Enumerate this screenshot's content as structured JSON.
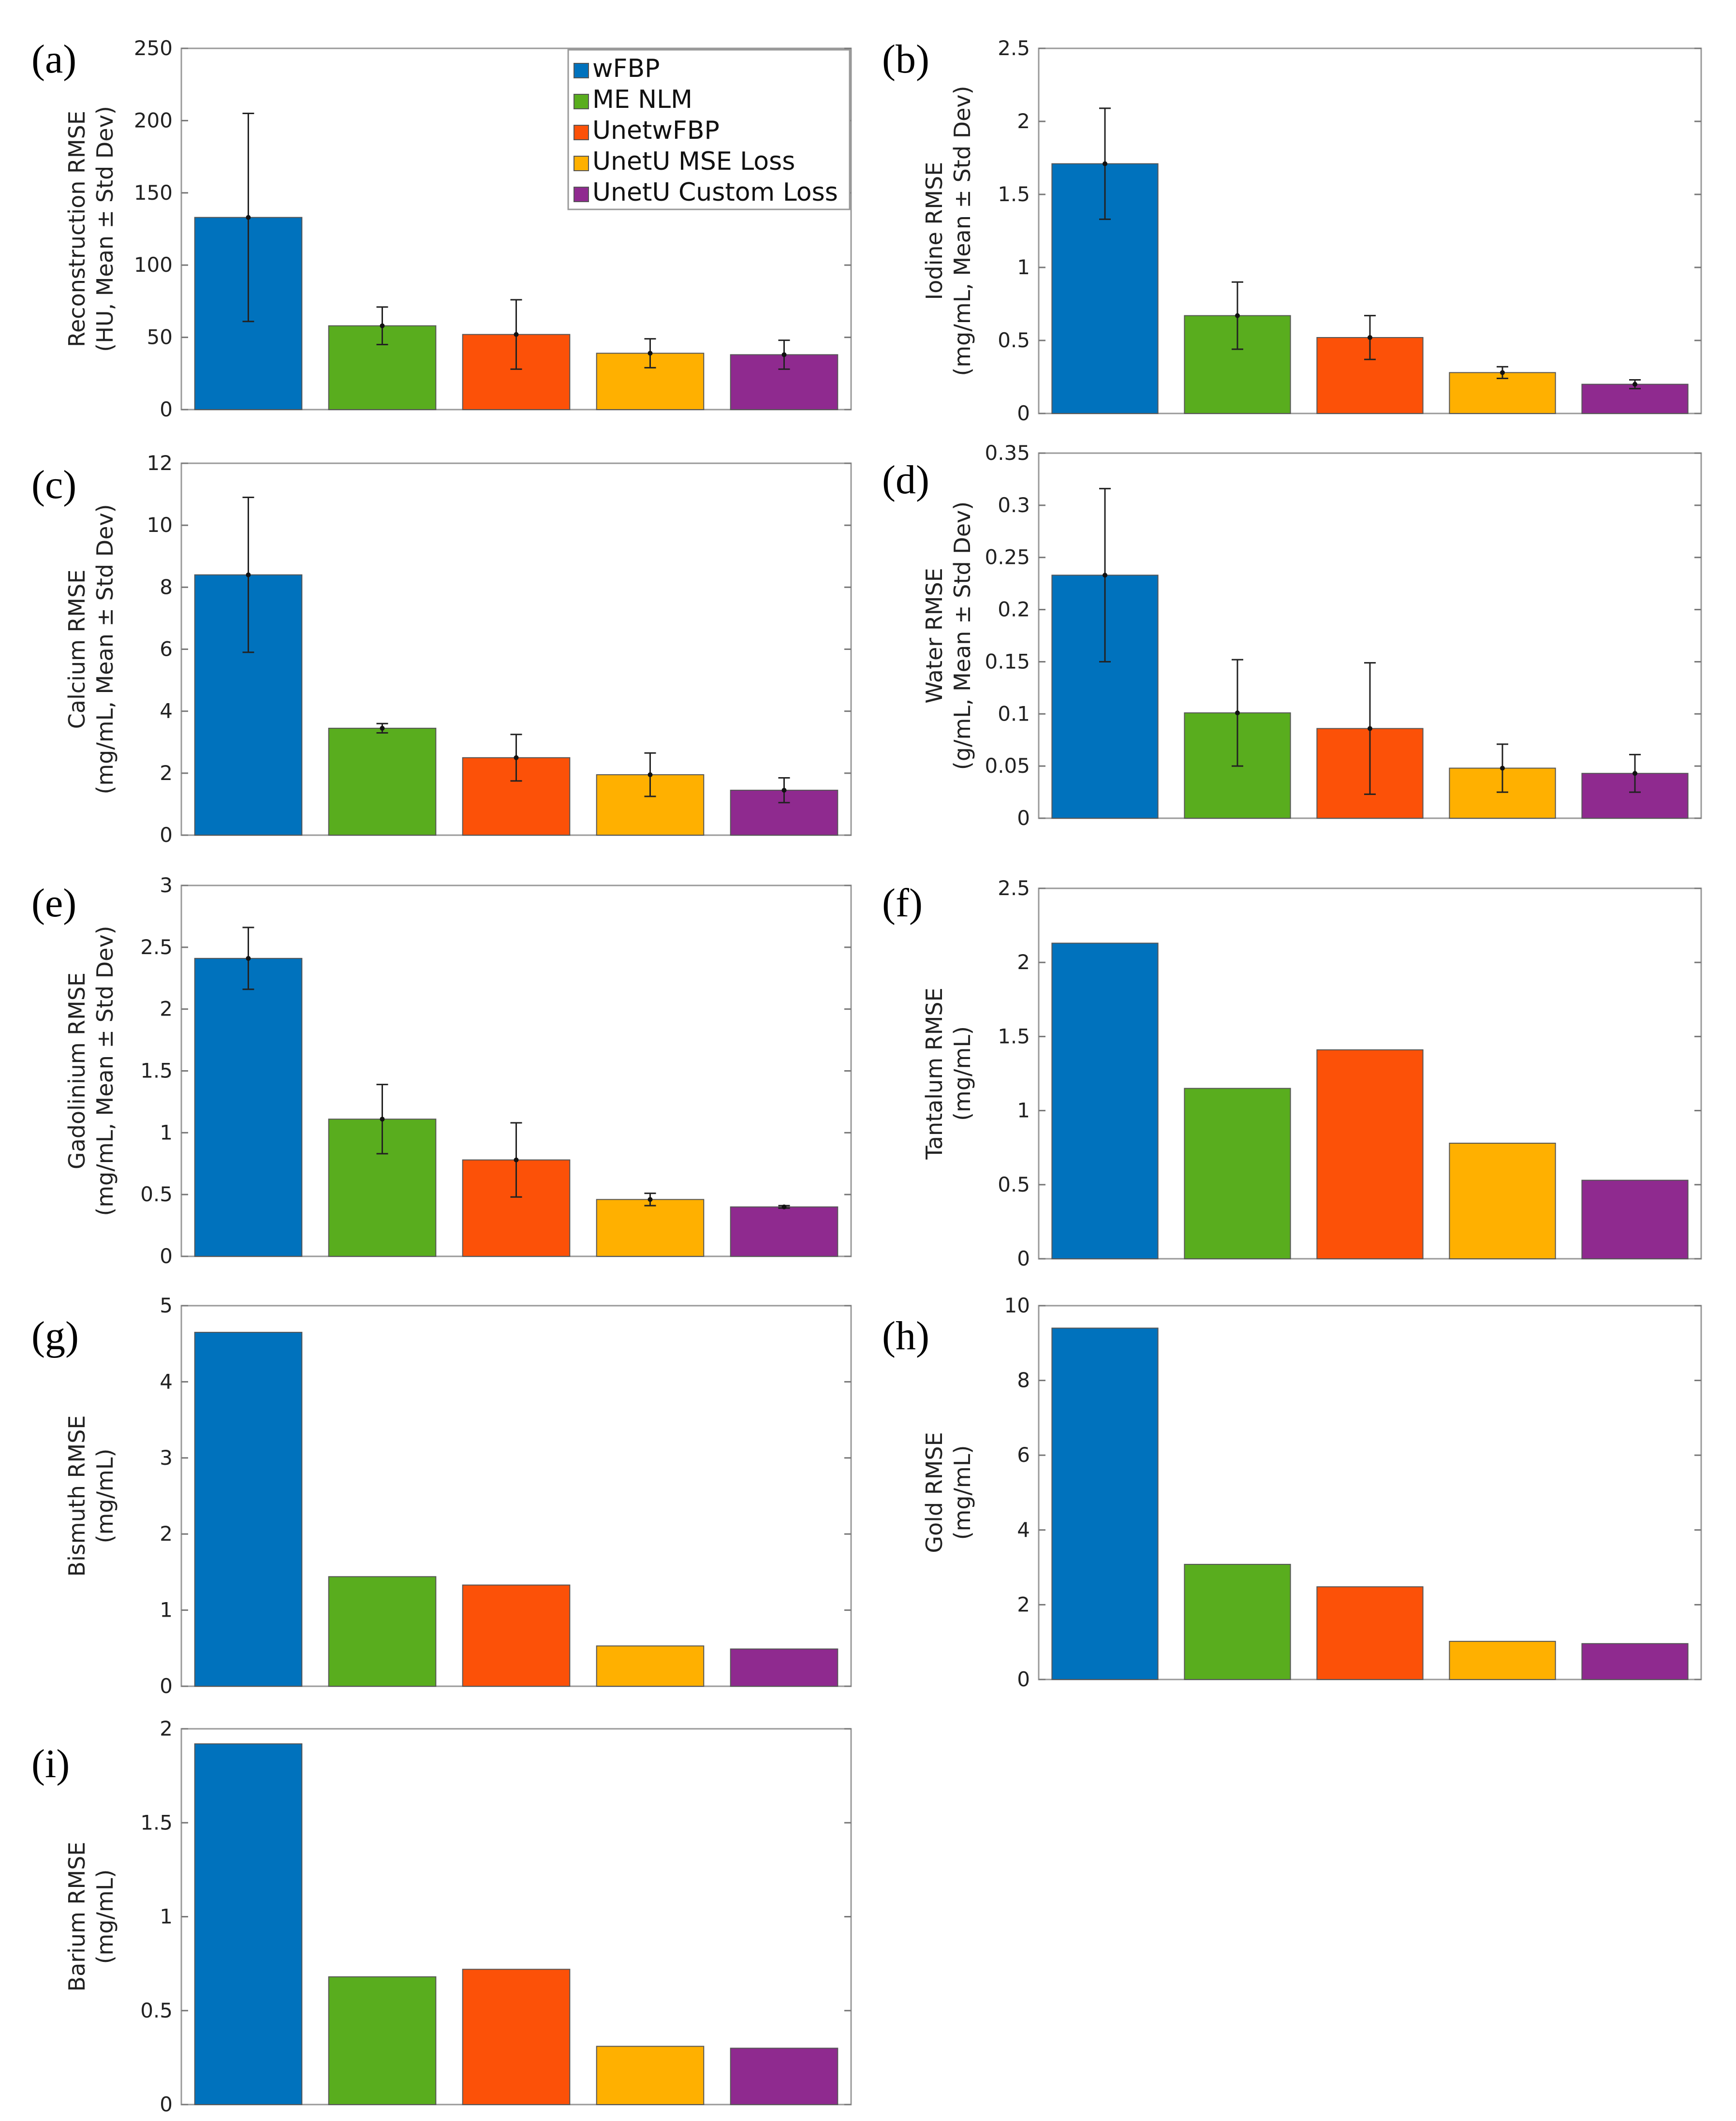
{
  "colors": {
    "wFBP": "#0072bd",
    "ME NLM": "#59ad1e",
    "UnetwFBP": "#fc5108",
    "UnetU MSE Loss": "#ffb000",
    "UnetU Custom Loss": "#8f2a8f"
  },
  "legend": [
    "wFBP",
    "ME NLM",
    "UnetwFBP",
    "UnetU MSE Loss",
    "UnetU Custom Loss"
  ],
  "chart_data": [
    {
      "id": "a",
      "panel_label": "(a)",
      "type": "bar",
      "categories": [
        "wFBP",
        "ME NLM",
        "UnetwFBP",
        "UnetU MSE Loss",
        "UnetU Custom Loss"
      ],
      "values": [
        133,
        58,
        52,
        39,
        38
      ],
      "errors": [
        72,
        13,
        24,
        10,
        10
      ],
      "ylim": [
        0,
        250
      ],
      "yticks": [
        0,
        50,
        100,
        150,
        200,
        250
      ],
      "ytick_labels": [
        "0",
        "50",
        "100",
        "150",
        "200",
        "250"
      ],
      "ylabel": [
        "Reconstruction RMSE",
        "(HU, Mean ± Std Dev)"
      ],
      "show_legend": true
    },
    {
      "id": "b",
      "panel_label": "(b)",
      "type": "bar",
      "categories": [
        "wFBP",
        "ME NLM",
        "UnetwFBP",
        "UnetU MSE Loss",
        "UnetU Custom Loss"
      ],
      "values": [
        1.71,
        0.67,
        0.52,
        0.28,
        0.2
      ],
      "errors": [
        0.38,
        0.23,
        0.15,
        0.04,
        0.03
      ],
      "ylim": [
        0,
        2.5
      ],
      "yticks": [
        0,
        0.5,
        1,
        1.5,
        2,
        2.5
      ],
      "ytick_labels": [
        "0",
        "0.5",
        "1",
        "1.5",
        "2",
        "2.5"
      ],
      "ylabel": [
        "Iodine RMSE",
        "(mg/mL, Mean ± Std Dev)"
      ]
    },
    {
      "id": "c",
      "panel_label": "(c)",
      "type": "bar",
      "categories": [
        "wFBP",
        "ME NLM",
        "UnetwFBP",
        "UnetU MSE Loss",
        "UnetU Custom Loss"
      ],
      "values": [
        8.4,
        3.45,
        2.5,
        1.95,
        1.45
      ],
      "errors": [
        2.5,
        0.15,
        0.75,
        0.7,
        0.4
      ],
      "ylim": [
        0,
        12
      ],
      "yticks": [
        0,
        2,
        4,
        6,
        8,
        10,
        12
      ],
      "ytick_labels": [
        "0",
        "2",
        "4",
        "6",
        "8",
        "10",
        "12"
      ],
      "ylabel": [
        "Calcium RMSE",
        "(mg/mL, Mean ± Std Dev)"
      ]
    },
    {
      "id": "d",
      "panel_label": "(d)",
      "type": "bar",
      "categories": [
        "wFBP",
        "ME NLM",
        "UnetwFBP",
        "UnetU MSE Loss",
        "UnetU Custom Loss"
      ],
      "values": [
        0.233,
        0.101,
        0.086,
        0.048,
        0.043
      ],
      "errors": [
        0.083,
        0.051,
        0.063,
        0.023,
        0.018
      ],
      "ylim": [
        0,
        0.35
      ],
      "yticks": [
        0,
        0.05,
        0.1,
        0.15,
        0.2,
        0.25,
        0.3,
        0.35
      ],
      "ytick_labels": [
        "0",
        "0.05",
        "0.1",
        "0.15",
        "0.2",
        "0.25",
        "0.3",
        "0.35"
      ],
      "ylabel": [
        "Water RMSE",
        "(g/mL, Mean ± Std Dev)"
      ]
    },
    {
      "id": "e",
      "panel_label": "(e)",
      "type": "bar",
      "categories": [
        "wFBP",
        "ME NLM",
        "UnetwFBP",
        "UnetU MSE Loss",
        "UnetU Custom Loss"
      ],
      "values": [
        2.41,
        1.11,
        0.78,
        0.46,
        0.4
      ],
      "errors": [
        0.25,
        0.28,
        0.3,
        0.05,
        0.01
      ],
      "ylim": [
        0,
        3
      ],
      "yticks": [
        0,
        0.5,
        1,
        1.5,
        2,
        2.5,
        3
      ],
      "ytick_labels": [
        "0",
        "0.5",
        "1",
        "1.5",
        "2",
        "2.5",
        "3"
      ],
      "ylabel": [
        "Gadolinium RMSE",
        "(mg/mL, Mean ± Std Dev)"
      ]
    },
    {
      "id": "f",
      "panel_label": "(f)",
      "type": "bar",
      "categories": [
        "wFBP",
        "ME NLM",
        "UnetwFBP",
        "UnetU MSE Loss",
        "UnetU Custom Loss"
      ],
      "values": [
        2.13,
        1.15,
        1.41,
        0.78,
        0.53
      ],
      "ylim": [
        0,
        2.5
      ],
      "yticks": [
        0,
        0.5,
        1,
        1.5,
        2,
        2.5
      ],
      "ytick_labels": [
        "0",
        "0.5",
        "1",
        "1.5",
        "2",
        "2.5"
      ],
      "ylabel": [
        "Tantalum RMSE",
        "(mg/mL)"
      ]
    },
    {
      "id": "g",
      "panel_label": "(g)",
      "type": "bar",
      "categories": [
        "wFBP",
        "ME NLM",
        "UnetwFBP",
        "UnetU MSE Loss",
        "UnetU Custom Loss"
      ],
      "values": [
        4.65,
        1.44,
        1.33,
        0.53,
        0.49
      ],
      "ylim": [
        0,
        5
      ],
      "yticks": [
        0,
        1,
        2,
        3,
        4,
        5
      ],
      "ytick_labels": [
        "0",
        "1",
        "2",
        "3",
        "4",
        "5"
      ],
      "ylabel": [
        "Bismuth RMSE",
        "(mg/mL)"
      ]
    },
    {
      "id": "h",
      "panel_label": "(h)",
      "type": "bar",
      "categories": [
        "wFBP",
        "ME NLM",
        "UnetwFBP",
        "UnetU MSE Loss",
        "UnetU Custom Loss"
      ],
      "values": [
        9.4,
        3.08,
        2.48,
        1.02,
        0.96
      ],
      "ylim": [
        0,
        10
      ],
      "yticks": [
        0,
        2,
        4,
        6,
        8,
        10
      ],
      "ytick_labels": [
        "0",
        "2",
        "4",
        "6",
        "8",
        "10"
      ],
      "ylabel": [
        "Gold RMSE",
        "(mg/mL)"
      ]
    },
    {
      "id": "i",
      "panel_label": "(i)",
      "type": "bar",
      "categories": [
        "wFBP",
        "ME NLM",
        "UnetwFBP",
        "UnetU MSE Loss",
        "UnetU Custom Loss"
      ],
      "values": [
        1.92,
        0.68,
        0.72,
        0.31,
        0.3
      ],
      "ylim": [
        0,
        2
      ],
      "yticks": [
        0,
        0.5,
        1,
        1.5,
        2
      ],
      "ytick_labels": [
        "0",
        "0.5",
        "1",
        "1.5",
        "2"
      ],
      "ylabel": [
        "Barium RMSE",
        "(mg/mL)"
      ]
    }
  ]
}
